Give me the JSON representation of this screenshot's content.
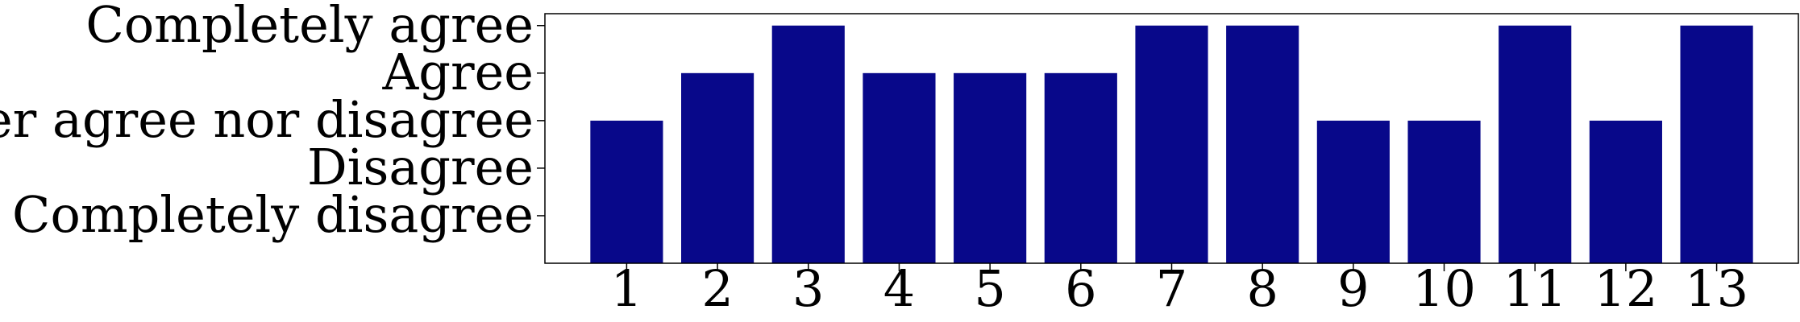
{
  "chart_data": {
    "type": "bar",
    "categories": [
      "1",
      "2",
      "3",
      "4",
      "5",
      "6",
      "7",
      "8",
      "9",
      "10",
      "11",
      "12",
      "13"
    ],
    "values": [
      3,
      4,
      5,
      4,
      4,
      4,
      5,
      5,
      3,
      3,
      5,
      3,
      5
    ],
    "ytick_values": [
      1,
      2,
      3,
      4,
      5
    ],
    "ytick_labels": [
      "Completely disagree",
      "Disagree",
      "Neither agree nor disagree",
      "Agree",
      "Completely agree"
    ],
    "ylim": [
      0,
      5.25
    ],
    "grid": false,
    "bar_color": "#08088a",
    "title": "",
    "xlabel": "",
    "ylabel": ""
  }
}
